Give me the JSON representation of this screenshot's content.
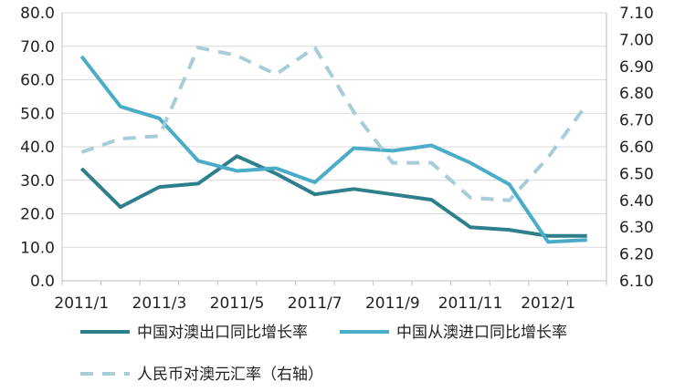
{
  "chart_data": {
    "type": "line",
    "categories": [
      "2011/1",
      "2011/2",
      "2011/3",
      "2011/4",
      "2011/5",
      "2011/6",
      "2011/7",
      "2011/8",
      "2011/9",
      "2011/10",
      "2011/11",
      "2011/12",
      "2012/1",
      "2012/2"
    ],
    "x_tick_labels": [
      "2011/1",
      "2011/3",
      "2011/5",
      "2011/7",
      "2011/9",
      "2011/11",
      "2012/1"
    ],
    "y_left": {
      "min": 0,
      "max": 80,
      "step": 10,
      "tick_labels": [
        "0.0",
        "10.0",
        "20.0",
        "30.0",
        "40.0",
        "50.0",
        "60.0",
        "70.0",
        "80.0"
      ]
    },
    "y_right": {
      "min": 6.1,
      "max": 7.1,
      "step": 0.1,
      "tick_labels": [
        "6.10",
        "6.20",
        "6.30",
        "6.40",
        "6.50",
        "6.60",
        "6.70",
        "6.80",
        "6.90",
        "7.00",
        "7.10"
      ]
    },
    "grid": "horizontal",
    "legend_position": "bottom",
    "series": [
      {
        "name": "中国对澳出口同比增长率",
        "axis": "left",
        "color": "#2e7f8c",
        "style": "solid",
        "values": [
          33.5,
          22.0,
          28.0,
          29.0,
          37.2,
          32.0,
          25.8,
          27.4,
          25.8,
          24.2,
          16.0,
          15.2,
          13.4,
          13.4
        ]
      },
      {
        "name": "中国从澳进口同比增长率",
        "axis": "left",
        "color": "#4aacc6",
        "style": "solid",
        "values": [
          67.0,
          52.0,
          48.5,
          35.8,
          32.8,
          33.6,
          29.4,
          39.6,
          38.8,
          40.4,
          35.2,
          28.8,
          11.6,
          12.2
        ]
      },
      {
        "name": "人民币对澳元汇率（右轴）",
        "axis": "right",
        "color": "#a9ccd9",
        "style": "dashed",
        "values": [
          6.58,
          6.63,
          6.64,
          6.97,
          6.94,
          6.87,
          6.97,
          6.73,
          6.54,
          6.54,
          6.41,
          6.4,
          6.56,
          6.76
        ]
      }
    ]
  }
}
